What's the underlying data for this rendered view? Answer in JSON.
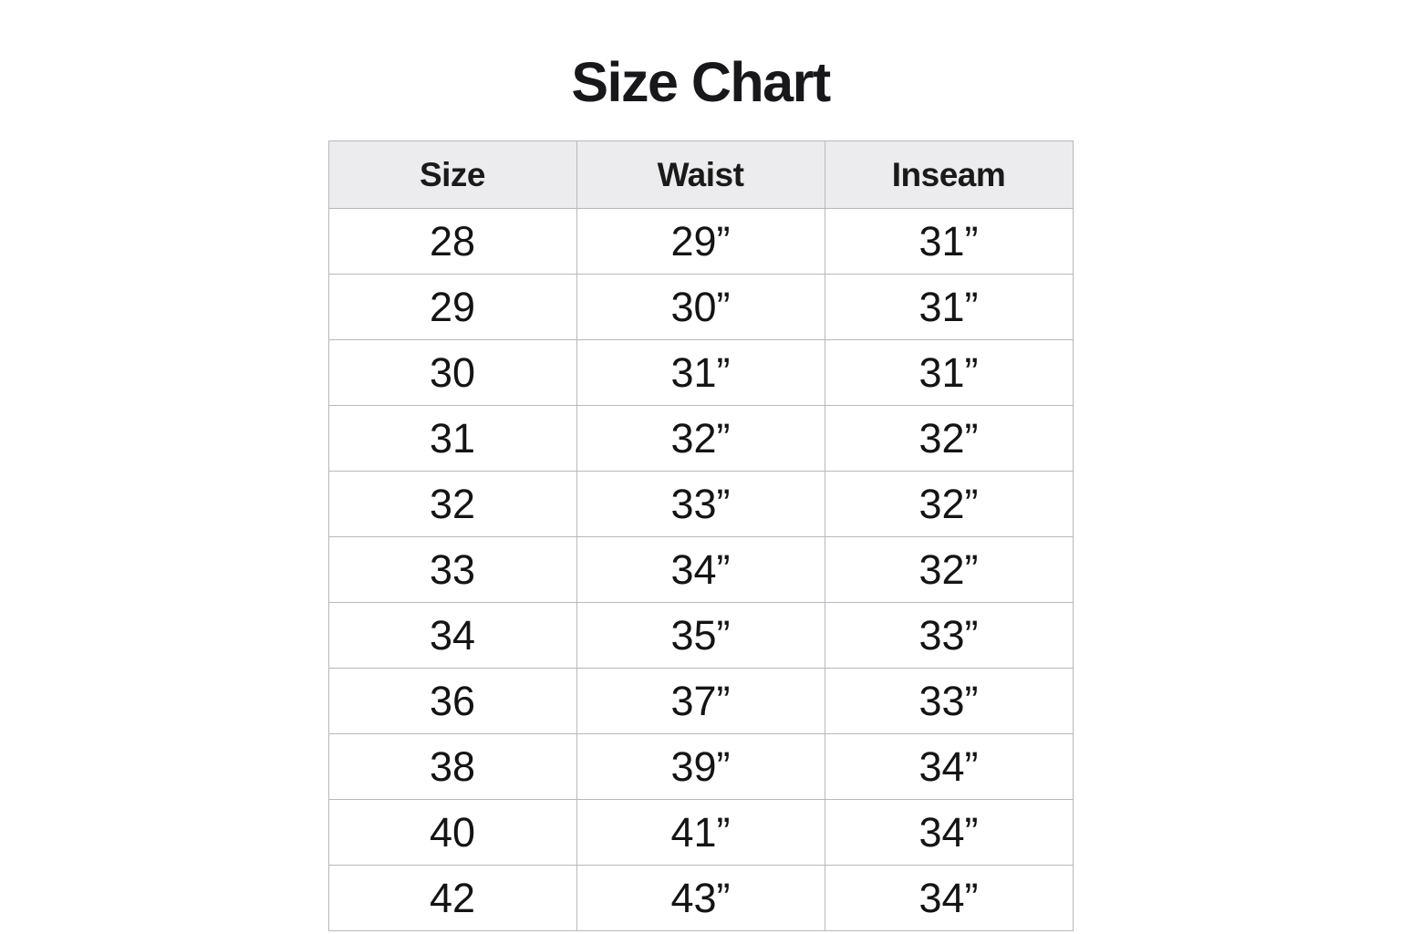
{
  "page": {
    "title": "Size Chart"
  },
  "chart_data": {
    "type": "table",
    "title": "Size Chart",
    "columns": [
      "Size",
      "Waist",
      "Inseam"
    ],
    "rows": [
      [
        "28",
        "29”",
        "31”"
      ],
      [
        "29",
        "30”",
        "31”"
      ],
      [
        "30",
        "31”",
        "31”"
      ],
      [
        "31",
        "32”",
        "32”"
      ],
      [
        "32",
        "33”",
        "32”"
      ],
      [
        "33",
        "34”",
        "32”"
      ],
      [
        "34",
        "35”",
        "33”"
      ],
      [
        "36",
        "37”",
        "33”"
      ],
      [
        "38",
        "39”",
        "34”"
      ],
      [
        "40",
        "41”",
        "34”"
      ],
      [
        "42",
        "43”",
        "34”"
      ]
    ],
    "layout": {
      "legend": "none",
      "grid": "full-borders",
      "column_alignment": "center"
    }
  },
  "colors": {
    "background": "#ffffff",
    "header_background": "#ececee",
    "border": "#b8b8bc",
    "title_text": "#18181b",
    "cell_text": "#141414"
  }
}
